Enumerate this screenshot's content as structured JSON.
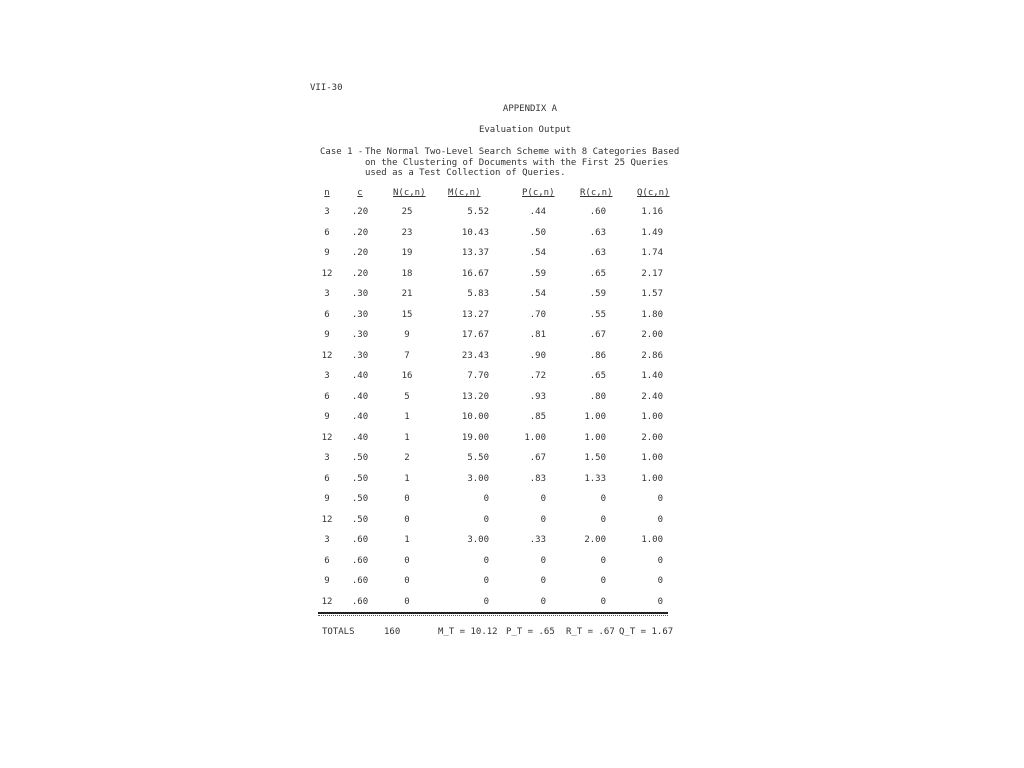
{
  "page_number": "VII-30",
  "title": "APPENDIX A",
  "subtitle": "Evaluation Output",
  "caption": {
    "label": "Case 1 -",
    "lines": [
      "The Normal Two-Level Search Scheme with 8 Categories Based",
      "on the Clustering of Documents with the First 25 Queries",
      "used as a Test Collection of Queries."
    ]
  },
  "table": {
    "headers": [
      "n",
      "c",
      "N(c,n)",
      "M(c,n)",
      "P(c,n)",
      "R(c,n)",
      "Q(c,n)"
    ],
    "rows": [
      [
        "3",
        ".20",
        "25",
        "5.52",
        ".44",
        ".60",
        "1.16"
      ],
      [
        "6",
        ".20",
        "23",
        "10.43",
        ".50",
        ".63",
        "1.49"
      ],
      [
        "9",
        ".20",
        "19",
        "13.37",
        ".54",
        ".63",
        "1.74"
      ],
      [
        "12",
        ".20",
        "18",
        "16.67",
        ".59",
        ".65",
        "2.17"
      ],
      [
        "3",
        ".30",
        "21",
        "5.83",
        ".54",
        ".59",
        "1.57"
      ],
      [
        "6",
        ".30",
        "15",
        "13.27",
        ".70",
        ".55",
        "1.80"
      ],
      [
        "9",
        ".30",
        "9",
        "17.67",
        ".81",
        ".67",
        "2.00"
      ],
      [
        "12",
        ".30",
        "7",
        "23.43",
        ".90",
        ".86",
        "2.86"
      ],
      [
        "3",
        ".40",
        "16",
        "7.70",
        ".72",
        ".65",
        "1.40"
      ],
      [
        "6",
        ".40",
        "5",
        "13.20",
        ".93",
        ".80",
        "2.40"
      ],
      [
        "9",
        ".40",
        "1",
        "10.00",
        ".85",
        "1.00",
        "1.00"
      ],
      [
        "12",
        ".40",
        "1",
        "19.00",
        "1.00",
        "1.00",
        "2.00"
      ],
      [
        "3",
        ".50",
        "2",
        "5.50",
        ".67",
        "1.50",
        "1.00"
      ],
      [
        "6",
        ".50",
        "1",
        "3.00",
        ".83",
        "1.33",
        "1.00"
      ],
      [
        "9",
        ".50",
        "0",
        "0",
        "0",
        "0",
        "0"
      ],
      [
        "12",
        ".50",
        "0",
        "0",
        "0",
        "0",
        "0"
      ],
      [
        "3",
        ".60",
        "1",
        "3.00",
        ".33",
        "2.00",
        "1.00"
      ],
      [
        "6",
        ".60",
        "0",
        "0",
        "0",
        "0",
        "0"
      ],
      [
        "9",
        ".60",
        "0",
        "0",
        "0",
        "0",
        "0"
      ],
      [
        "12",
        ".60",
        "0",
        "0",
        "0",
        "0",
        "0"
      ]
    ],
    "totals": {
      "label": "TOTALS",
      "n_total": "160",
      "m": "M_T = 10.12",
      "p": "P_T = .65",
      "r": "R_T = .67",
      "q": "Q_T = 1.67"
    }
  }
}
